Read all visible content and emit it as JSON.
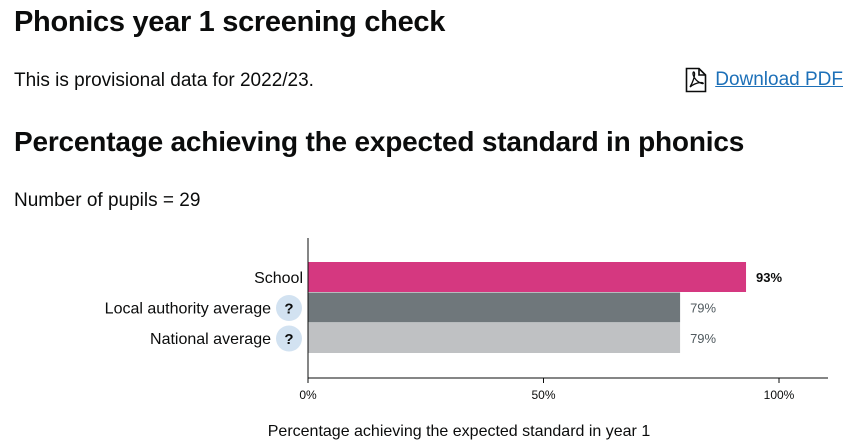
{
  "page": {
    "title": "Phonics year 1 screening check",
    "provisional_text": "This is provisional data for 2022/23.",
    "download_label": "Download PDF",
    "section_heading": "Percentage achieving the expected standard in phonics",
    "pupils_text": "Number of pupils = 29"
  },
  "icons": {
    "download": "pdf-file-icon",
    "help": "question-mark-icon"
  },
  "chart_data": {
    "type": "bar",
    "orientation": "horizontal",
    "categories": [
      "School",
      "Local authority average",
      "National average"
    ],
    "values": [
      93,
      79,
      79
    ],
    "value_labels": [
      "93%",
      "79%",
      "79%"
    ],
    "colors": [
      "#d53880",
      "#6f777b",
      "#bfc1c3"
    ],
    "has_help": [
      false,
      true,
      true
    ],
    "bold_value": [
      true,
      false,
      false
    ],
    "xlim": [
      0,
      100
    ],
    "xticks": [
      0,
      50,
      100
    ],
    "xtick_labels": [
      "0%",
      "50%",
      "100%"
    ],
    "xlabel": "Percentage achieving the expected standard in year 1",
    "title": "",
    "grid": false
  }
}
